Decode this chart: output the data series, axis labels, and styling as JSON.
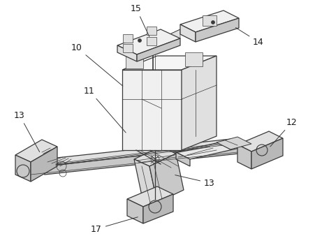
{
  "background_color": "#ffffff",
  "line_color": "#3a3a3a",
  "figsize": [
    4.52,
    3.58
  ],
  "dpi": 100,
  "label_color": "#1a1a1a",
  "label_fs": 9,
  "lw_main": 0.9,
  "lw_thin": 0.5,
  "colors": {
    "light": "#f0f0f0",
    "mid": "#e0e0e0",
    "dark": "#c8c8c8",
    "darker": "#b8b8b8"
  }
}
